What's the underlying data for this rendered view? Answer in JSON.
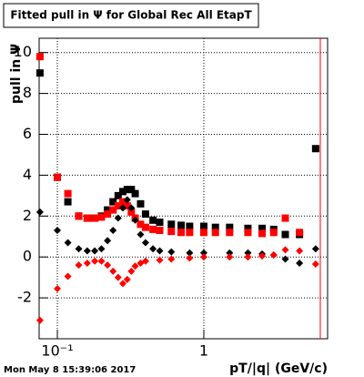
{
  "chart_data": {
    "type": "scatter",
    "title": "Fitted pull in  Ψ  for Global Rec All EtapT",
    "x_label": "pT/|q| (GeV/c)",
    "y_label": "pull in  Ψ",
    "timestamp": "Mon May  8 15:39:06 2017",
    "xlog": true,
    "grid": true,
    "xlim": [
      0.0751,
      7.0
    ],
    "ylim": [
      -4.0,
      10.7
    ],
    "xticks": [
      {
        "value": 0.1,
        "label": "10⁻¹"
      },
      1
    ],
    "yticks": [
      -2,
      0,
      2,
      4,
      6,
      8,
      10
    ],
    "vline": {
      "x": 6.24,
      "color": "#ff0000"
    },
    "series": [
      {
        "marker": "square",
        "color": "#000000",
        "x": [
          0.0761,
          0.1,
          0.118,
          0.14,
          0.16,
          0.18,
          0.2,
          0.22,
          0.24,
          0.26,
          0.28,
          0.3,
          0.32,
          0.34,
          0.37,
          0.4,
          0.45,
          0.5,
          0.6,
          0.7,
          0.8,
          1.0,
          1.2,
          1.5,
          2.0,
          2.5,
          3.0,
          3.6,
          4.5,
          5.8
        ],
        "values": [
          9.0,
          3.9,
          2.7,
          2.0,
          1.9,
          1.9,
          2.0,
          2.3,
          2.7,
          3.0,
          3.2,
          3.3,
          3.3,
          3.1,
          2.6,
          2.1,
          1.8,
          1.7,
          1.6,
          1.55,
          1.5,
          1.5,
          1.45,
          1.45,
          1.4,
          1.4,
          1.35,
          1.1,
          1.1,
          5.3
        ]
      },
      {
        "marker": "square",
        "color": "#ff0000",
        "x": [
          0.0761,
          0.1,
          0.118,
          0.14,
          0.16,
          0.18,
          0.2,
          0.22,
          0.24,
          0.26,
          0.28,
          0.3,
          0.32,
          0.34,
          0.37,
          0.4,
          0.45,
          0.5,
          0.6,
          0.7,
          0.8,
          1.0,
          1.2,
          1.5,
          2.0,
          2.5,
          3.0,
          3.6,
          4.5
        ],
        "values": [
          9.8,
          3.9,
          3.1,
          2.0,
          1.9,
          1.9,
          1.95,
          2.1,
          2.3,
          2.5,
          2.7,
          2.5,
          2.2,
          1.9,
          1.6,
          1.45,
          1.35,
          1.3,
          1.25,
          1.2,
          1.2,
          1.2,
          1.2,
          1.2,
          1.2,
          1.15,
          1.2,
          1.9,
          1.2
        ]
      },
      {
        "marker": "diamond",
        "color": "#000000",
        "x": [
          0.0761,
          0.1,
          0.118,
          0.14,
          0.16,
          0.18,
          0.2,
          0.22,
          0.24,
          0.26,
          0.28,
          0.3,
          0.32,
          0.34,
          0.37,
          0.4,
          0.45,
          0.5,
          0.6,
          0.8,
          1.0,
          1.5,
          2.0,
          2.5,
          3.0,
          3.6,
          4.5,
          5.8
        ],
        "values": [
          2.2,
          1.3,
          0.7,
          0.4,
          0.3,
          0.3,
          0.4,
          0.8,
          1.3,
          1.9,
          2.4,
          2.8,
          2.4,
          1.8,
          1.1,
          0.7,
          0.4,
          0.3,
          0.25,
          0.2,
          0.2,
          0.2,
          0.2,
          0.15,
          0.1,
          -0.1,
          -0.3,
          0.4
        ]
      },
      {
        "marker": "diamond",
        "color": "#ff0000",
        "x": [
          0.0761,
          0.1,
          0.118,
          0.14,
          0.16,
          0.18,
          0.2,
          0.22,
          0.24,
          0.26,
          0.28,
          0.3,
          0.32,
          0.34,
          0.37,
          0.4,
          0.5,
          0.6,
          0.8,
          1.0,
          1.5,
          2.0,
          2.5,
          3.0,
          3.6,
          4.5,
          5.8
        ],
        "values": [
          -3.1,
          -1.55,
          -0.95,
          -0.4,
          -0.3,
          -0.2,
          -0.2,
          -0.4,
          -0.7,
          -1.0,
          -1.3,
          -1.1,
          -0.7,
          -0.45,
          -0.3,
          -0.2,
          -0.15,
          -0.1,
          -0.05,
          0.0,
          0.0,
          0.0,
          0.05,
          0.1,
          0.35,
          0.3,
          -0.35
        ]
      }
    ]
  }
}
